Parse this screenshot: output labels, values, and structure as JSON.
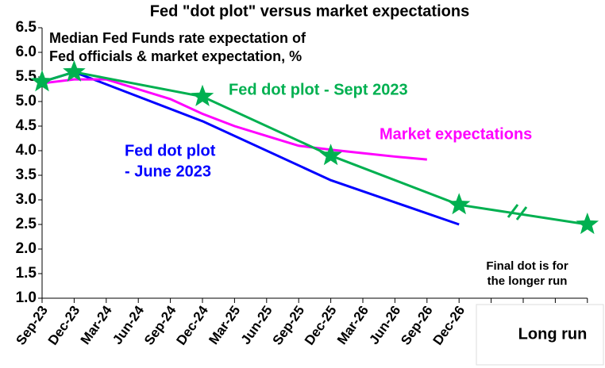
{
  "chart_data": {
    "type": "line",
    "title": "Fed \"dot plot\" versus market expectations",
    "annotations": [
      "Median Fed Funds rate expectation of",
      "Fed officials & market expectation, %",
      "Final dot is for",
      "the longer run"
    ],
    "categories": [
      "Sep-23",
      "Dec-23",
      "Mar-24",
      "Jun-24",
      "Sep-24",
      "Dec-24",
      "Mar-25",
      "Jun-25",
      "Sep-25",
      "Dec-25",
      "Mar-26",
      "Jun-26",
      "Sep-26",
      "Dec-26",
      null,
      null,
      null,
      "Long run"
    ],
    "ylim": [
      1.0,
      6.5
    ],
    "yticks": [
      {
        "value": 1.0,
        "label": "1.0"
      },
      1.5,
      {
        "value": 2.0,
        "label": "2.0"
      },
      2.5,
      {
        "value": 3.0,
        "label": "3.0"
      },
      3.5,
      {
        "value": 4.0,
        "label": "4.0"
      },
      4.5,
      {
        "value": 5.0,
        "label": "5.0"
      },
      5.5,
      {
        "value": 6.0,
        "label": "6.0"
      },
      6.5
    ],
    "series": [
      {
        "name": [
          "Fed dot plot",
          "- June 2023"
        ],
        "color": "#0000ff",
        "marker": "none",
        "x": [
          "Sep-23",
          "Dec-23",
          "Dec-24",
          "Dec-25",
          "Dec-26"
        ],
        "values": [
          5.4,
          5.6,
          4.6,
          3.4,
          2.5
        ]
      },
      {
        "name": [
          "Market expectations"
        ],
        "color": "#ff00ff",
        "marker": "none",
        "x": [
          "Sep-23",
          "Dec-23",
          "Mar-24",
          "Jun-24",
          "Sep-24",
          "Dec-24",
          "Mar-25",
          "Jun-25",
          "Sep-25",
          "Dec-25",
          "Mar-26",
          "Jun-26",
          "Sep-26"
        ],
        "values": [
          5.37,
          5.45,
          5.45,
          5.25,
          5.05,
          4.75,
          4.5,
          4.3,
          4.1,
          4.02,
          3.95,
          3.88,
          3.82
        ]
      },
      {
        "name": [
          "Fed dot plot - Sept 2023"
        ],
        "color": "#00b050",
        "marker": "star",
        "x": [
          "Sep-23",
          "Dec-23",
          "Dec-24",
          "Dec-25",
          "Dec-26",
          "Long run"
        ],
        "values": [
          5.4,
          5.6,
          5.1,
          3.9,
          2.9,
          2.5
        ]
      }
    ]
  }
}
